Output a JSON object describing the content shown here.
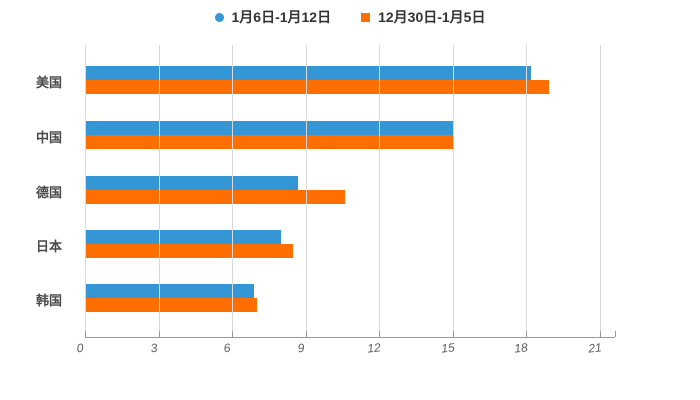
{
  "chart_data": {
    "type": "bar",
    "orientation": "horizontal",
    "title": "",
    "categories": [
      "美国",
      "中国",
      "德国",
      "日本",
      "韩国"
    ],
    "series": [
      {
        "name": "1月6日-1月12日",
        "marker": "circle-icon",
        "color": "#3596d5",
        "values": [
          18.2,
          15,
          8.7,
          8,
          6.9
        ]
      },
      {
        "name": "12月30日-1月5日",
        "marker": "square-icon",
        "color": "#ff6e00",
        "values": [
          18.9,
          15,
          10.6,
          8.5,
          7
        ]
      }
    ],
    "xlabel": "",
    "ylabel": "",
    "xlim": [
      0,
      21.6
    ],
    "x_ticks": [
      0,
      3,
      6,
      9,
      12,
      15,
      18,
      21
    ],
    "grid": true,
    "legend_position": "top",
    "colors": {
      "background": "#ffffff",
      "grid_line": "#d9d9d9",
      "axis_line": "#9a9a9a",
      "legend_text": "#333333",
      "category_text": "#4a4a4a",
      "tick_text": "#5c5c5c"
    }
  }
}
